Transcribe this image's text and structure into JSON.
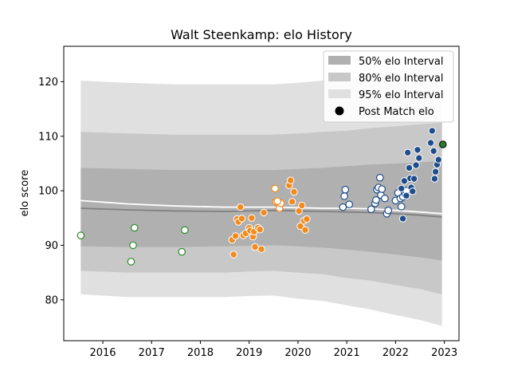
{
  "chart_data": {
    "type": "scatter",
    "title": "Walt Steenkamp: elo History",
    "xlabel": "",
    "ylabel": "elo score",
    "xlim": [
      2015.2,
      2023.3
    ],
    "ylim": [
      72.5,
      126.5
    ],
    "xticks": [
      2016,
      2017,
      2018,
      2019,
      2020,
      2021,
      2022,
      2023
    ],
    "yticks": [
      80,
      90,
      100,
      110,
      120
    ],
    "grid": false,
    "legend_position": "top-right",
    "legend": [
      {
        "label": "50% elo Interval",
        "kind": "band",
        "color": "#b0b0b0"
      },
      {
        "label": "80% elo Interval",
        "kind": "band",
        "color": "#c8c8c8"
      },
      {
        "label": "95% elo Interval",
        "kind": "band",
        "color": "#e0e0e0"
      },
      {
        "label": "Post Match elo",
        "kind": "marker",
        "color": "#000000"
      }
    ],
    "colors": {
      "band95": "#e0e0e0",
      "band80": "#c8c8c8",
      "band50": "#b0b0b0",
      "median_line": "#808080",
      "mean_line": "#ffffff",
      "green": "#2a8a2a",
      "orange": "#f28a1c",
      "blue": "#1f4e8c",
      "latest": "#2a7a2a"
    },
    "bands": {
      "x": [
        2015.55,
        2016.5,
        2017.5,
        2018.5,
        2019.0,
        2019.5,
        2020.0,
        2020.5,
        2021.0,
        2021.5,
        2022.0,
        2022.5,
        2022.95
      ],
      "p95_low": [
        81.0,
        80.5,
        80.5,
        80.5,
        80.7,
        80.8,
        80.2,
        79.8,
        79.0,
        78.2,
        77.2,
        76.3,
        75.2
      ],
      "p95_high": [
        120.2,
        119.8,
        119.5,
        119.5,
        119.5,
        119.5,
        119.8,
        120.2,
        120.7,
        121.3,
        121.8,
        122.3,
        122.8
      ],
      "p80_low": [
        85.3,
        85.0,
        85.0,
        85.0,
        85.2,
        85.3,
        85.0,
        84.7,
        84.0,
        83.5,
        82.7,
        82.0,
        81.0
      ],
      "p80_high": [
        110.8,
        110.5,
        110.3,
        110.3,
        110.3,
        110.3,
        110.5,
        110.8,
        111.0,
        111.5,
        111.8,
        112.2,
        112.5
      ],
      "p50_low": [
        89.8,
        89.7,
        89.7,
        89.8,
        89.9,
        90.0,
        89.8,
        89.6,
        89.2,
        88.8,
        88.3,
        87.8,
        87.2
      ],
      "p50_high": [
        104.2,
        104.0,
        103.8,
        103.8,
        103.8,
        103.8,
        104.0,
        104.2,
        104.5,
        104.8,
        105.0,
        105.2,
        105.5
      ],
      "median": [
        96.8,
        96.5,
        96.3,
        96.2,
        96.3,
        96.4,
        96.3,
        96.2,
        96.1,
        96.0,
        95.8,
        95.5,
        95.2
      ],
      "mean": [
        98.2,
        97.6,
        97.2,
        97.0,
        97.0,
        97.0,
        96.9,
        96.8,
        96.8,
        96.7,
        96.4,
        96.1,
        95.8
      ]
    },
    "series": [
      {
        "group": "green",
        "filled": false,
        "points": [
          [
            2015.55,
            91.8
          ],
          [
            2016.58,
            87.0
          ],
          [
            2016.62,
            90.0
          ],
          [
            2016.65,
            93.2
          ],
          [
            2017.62,
            88.8
          ],
          [
            2017.68,
            92.8
          ]
        ]
      },
      {
        "group": "orange",
        "filled": false,
        "points": [
          [
            2019.53,
            100.4
          ],
          [
            2019.55,
            98.0
          ],
          [
            2019.6,
            97.8
          ],
          [
            2019.62,
            96.8
          ],
          [
            2019.65,
            97.7
          ],
          [
            2019.58,
            98.1
          ]
        ]
      },
      {
        "group": "orange",
        "filled": true,
        "points": [
          [
            2018.65,
            91.0
          ],
          [
            2018.68,
            88.3
          ],
          [
            2018.72,
            91.7
          ],
          [
            2018.75,
            94.8
          ],
          [
            2018.78,
            94.3
          ],
          [
            2018.82,
            97.0
          ],
          [
            2018.85,
            94.9
          ],
          [
            2018.88,
            91.8
          ],
          [
            2018.93,
            92.2
          ],
          [
            2019.0,
            93.2
          ],
          [
            2019.02,
            92.7
          ],
          [
            2019.05,
            95.0
          ],
          [
            2019.08,
            91.6
          ],
          [
            2019.1,
            92.5
          ],
          [
            2019.12,
            89.7
          ],
          [
            2019.18,
            93.2
          ],
          [
            2019.22,
            92.9
          ],
          [
            2019.25,
            89.3
          ],
          [
            2019.3,
            96.0
          ],
          [
            2019.82,
            101.0
          ],
          [
            2019.85,
            101.9
          ],
          [
            2019.88,
            98.0
          ],
          [
            2019.92,
            99.8
          ],
          [
            2020.02,
            96.3
          ],
          [
            2020.05,
            93.5
          ],
          [
            2020.08,
            97.3
          ],
          [
            2020.12,
            94.5
          ],
          [
            2020.15,
            92.8
          ],
          [
            2020.18,
            94.8
          ]
        ]
      },
      {
        "group": "blue",
        "filled": false,
        "points": [
          [
            2020.92,
            97.0
          ],
          [
            2020.95,
            99.0
          ],
          [
            2020.97,
            100.2
          ],
          [
            2021.05,
            97.5
          ],
          [
            2021.5,
            96.6
          ],
          [
            2021.58,
            97.7
          ],
          [
            2021.6,
            98.3
          ],
          [
            2021.62,
            100.2
          ],
          [
            2021.65,
            100.6
          ],
          [
            2021.68,
            102.4
          ],
          [
            2021.7,
            99.2
          ],
          [
            2021.72,
            100.3
          ],
          [
            2021.78,
            98.6
          ],
          [
            2021.82,
            95.8
          ],
          [
            2021.85,
            96.4
          ],
          [
            2022.0,
            98.2
          ],
          [
            2022.05,
            99.6
          ],
          [
            2022.1,
            98.6
          ],
          [
            2022.12,
            97.1
          ],
          [
            2022.15,
            98.9
          ],
          [
            2022.2,
            99.4
          ],
          [
            2022.22,
            100.0
          ]
        ]
      },
      {
        "group": "blue",
        "filled": true,
        "points": [
          [
            2022.12,
            100.4
          ],
          [
            2022.15,
            94.9
          ],
          [
            2022.18,
            101.8
          ],
          [
            2022.22,
            99.1
          ],
          [
            2022.25,
            107.0
          ],
          [
            2022.28,
            104.2
          ],
          [
            2022.3,
            102.3
          ],
          [
            2022.32,
            100.6
          ],
          [
            2022.35,
            99.9
          ],
          [
            2022.38,
            102.2
          ],
          [
            2022.42,
            104.7
          ],
          [
            2022.45,
            107.5
          ],
          [
            2022.48,
            106.0
          ],
          [
            2022.72,
            108.8
          ],
          [
            2022.75,
            111.0
          ],
          [
            2022.78,
            107.3
          ],
          [
            2022.8,
            102.2
          ],
          [
            2022.82,
            103.5
          ],
          [
            2022.85,
            104.8
          ],
          [
            2022.88,
            105.7
          ]
        ]
      },
      {
        "group": "latest",
        "filled": true,
        "points": [
          [
            2022.97,
            108.5
          ]
        ]
      }
    ]
  }
}
